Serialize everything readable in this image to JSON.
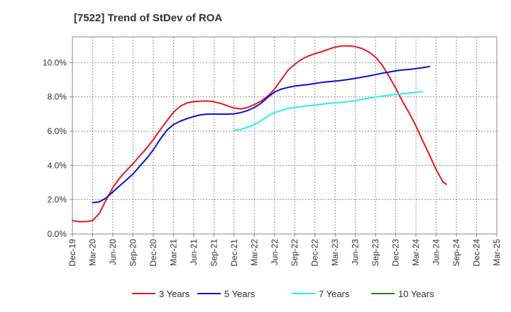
{
  "chart_data": {
    "type": "line",
    "title": "[7522]  Trend of StDev of ROA",
    "xlabel": "",
    "ylabel": "",
    "x_tick_labels": [
      "Dec-19",
      "Mar-20",
      "Jun-20",
      "Sep-20",
      "Dec-20",
      "Mar-21",
      "Jun-21",
      "Sep-21",
      "Dec-21",
      "Mar-22",
      "Jun-22",
      "Sep-22",
      "Dec-22",
      "Mar-23",
      "Jun-23",
      "Sep-23",
      "Dec-23",
      "Mar-24",
      "Jun-24",
      "Sep-24",
      "Dec-24",
      "Mar-25"
    ],
    "y_tick_labels": [
      "0.0%",
      "2.0%",
      "4.0%",
      "6.0%",
      "8.0%",
      "10.0%"
    ],
    "y_ticks": [
      0,
      2,
      4,
      6,
      8,
      10
    ],
    "ylim": [
      0,
      11.5
    ],
    "x_range": [
      0,
      21
    ],
    "grid": true,
    "legend_position": "bottom",
    "series": [
      {
        "name": "3 Years",
        "color": "#e31a1c",
        "points": [
          [
            0,
            0.78
          ],
          [
            0.33,
            0.72
          ],
          [
            0.67,
            0.72
          ],
          [
            1,
            0.78
          ],
          [
            1.33,
            1.2
          ],
          [
            1.67,
            2.0
          ],
          [
            2,
            2.7
          ],
          [
            2.33,
            3.25
          ],
          [
            2.67,
            3.7
          ],
          [
            3,
            4.1
          ],
          [
            3.33,
            4.55
          ],
          [
            3.67,
            5.0
          ],
          [
            4,
            5.5
          ],
          [
            4.33,
            6.05
          ],
          [
            4.67,
            6.6
          ],
          [
            5,
            7.1
          ],
          [
            5.33,
            7.45
          ],
          [
            5.67,
            7.65
          ],
          [
            6,
            7.72
          ],
          [
            6.33,
            7.75
          ],
          [
            6.67,
            7.76
          ],
          [
            7,
            7.72
          ],
          [
            7.33,
            7.62
          ],
          [
            7.67,
            7.48
          ],
          [
            8,
            7.35
          ],
          [
            8.33,
            7.3
          ],
          [
            8.67,
            7.38
          ],
          [
            9,
            7.55
          ],
          [
            9.33,
            7.75
          ],
          [
            9.67,
            8.05
          ],
          [
            10,
            8.45
          ],
          [
            10.33,
            9.0
          ],
          [
            10.67,
            9.55
          ],
          [
            11,
            9.9
          ],
          [
            11.33,
            10.18
          ],
          [
            11.67,
            10.38
          ],
          [
            12,
            10.52
          ],
          [
            12.33,
            10.63
          ],
          [
            12.67,
            10.78
          ],
          [
            13,
            10.9
          ],
          [
            13.33,
            10.97
          ],
          [
            13.67,
            10.98
          ],
          [
            14,
            10.93
          ],
          [
            14.33,
            10.82
          ],
          [
            14.67,
            10.62
          ],
          [
            15,
            10.32
          ],
          [
            15.33,
            9.85
          ],
          [
            15.67,
            9.2
          ],
          [
            16,
            8.5
          ],
          [
            16.33,
            7.75
          ],
          [
            16.67,
            7.05
          ],
          [
            17,
            6.3
          ],
          [
            17.33,
            5.45
          ],
          [
            17.67,
            4.6
          ],
          [
            18,
            3.75
          ],
          [
            18.33,
            3.05
          ],
          [
            18.5,
            2.9
          ]
        ]
      },
      {
        "name": "5 Years",
        "color": "#0a12c8",
        "points": [
          [
            1,
            1.83
          ],
          [
            1.33,
            1.88
          ],
          [
            1.67,
            2.1
          ],
          [
            2,
            2.45
          ],
          [
            2.33,
            2.8
          ],
          [
            2.67,
            3.15
          ],
          [
            3,
            3.5
          ],
          [
            3.33,
            3.95
          ],
          [
            3.67,
            4.4
          ],
          [
            4,
            4.9
          ],
          [
            4.33,
            5.5
          ],
          [
            4.67,
            6.05
          ],
          [
            5,
            6.38
          ],
          [
            5.33,
            6.58
          ],
          [
            5.67,
            6.73
          ],
          [
            6,
            6.85
          ],
          [
            6.33,
            6.95
          ],
          [
            6.67,
            6.99
          ],
          [
            7,
            7.0
          ],
          [
            7.33,
            6.99
          ],
          [
            7.67,
            6.99
          ],
          [
            8,
            7.01
          ],
          [
            8.33,
            7.08
          ],
          [
            8.67,
            7.2
          ],
          [
            9,
            7.38
          ],
          [
            9.33,
            7.62
          ],
          [
            9.67,
            7.98
          ],
          [
            10,
            8.28
          ],
          [
            10.33,
            8.45
          ],
          [
            10.67,
            8.55
          ],
          [
            11,
            8.63
          ],
          [
            11.33,
            8.68
          ],
          [
            11.67,
            8.72
          ],
          [
            12,
            8.78
          ],
          [
            12.33,
            8.84
          ],
          [
            12.67,
            8.88
          ],
          [
            13,
            8.92
          ],
          [
            13.33,
            8.96
          ],
          [
            13.67,
            9.02
          ],
          [
            14,
            9.08
          ],
          [
            14.33,
            9.15
          ],
          [
            14.67,
            9.22
          ],
          [
            15,
            9.3
          ],
          [
            15.33,
            9.38
          ],
          [
            15.67,
            9.45
          ],
          [
            16,
            9.52
          ],
          [
            16.33,
            9.57
          ],
          [
            16.67,
            9.6
          ],
          [
            17,
            9.65
          ],
          [
            17.33,
            9.7
          ],
          [
            17.67,
            9.77
          ]
        ]
      },
      {
        "name": "7 Years",
        "color": "#2af0f0",
        "points": [
          [
            8,
            6.05
          ],
          [
            8.33,
            6.1
          ],
          [
            8.67,
            6.22
          ],
          [
            9,
            6.38
          ],
          [
            9.33,
            6.6
          ],
          [
            9.67,
            6.88
          ],
          [
            10,
            7.08
          ],
          [
            10.33,
            7.22
          ],
          [
            10.67,
            7.32
          ],
          [
            11,
            7.38
          ],
          [
            11.33,
            7.43
          ],
          [
            11.67,
            7.48
          ],
          [
            12,
            7.52
          ],
          [
            12.33,
            7.57
          ],
          [
            12.67,
            7.62
          ],
          [
            13,
            7.65
          ],
          [
            13.33,
            7.68
          ],
          [
            13.67,
            7.72
          ],
          [
            14,
            7.78
          ],
          [
            14.33,
            7.85
          ],
          [
            14.67,
            7.92
          ],
          [
            15,
            7.98
          ],
          [
            15.33,
            8.05
          ],
          [
            15.67,
            8.1
          ],
          [
            16,
            8.15
          ],
          [
            16.33,
            8.18
          ],
          [
            16.67,
            8.22
          ],
          [
            17,
            8.27
          ],
          [
            17.33,
            8.3
          ]
        ]
      },
      {
        "name": "10 Years",
        "color": "#1a8c1a",
        "points": []
      }
    ]
  }
}
